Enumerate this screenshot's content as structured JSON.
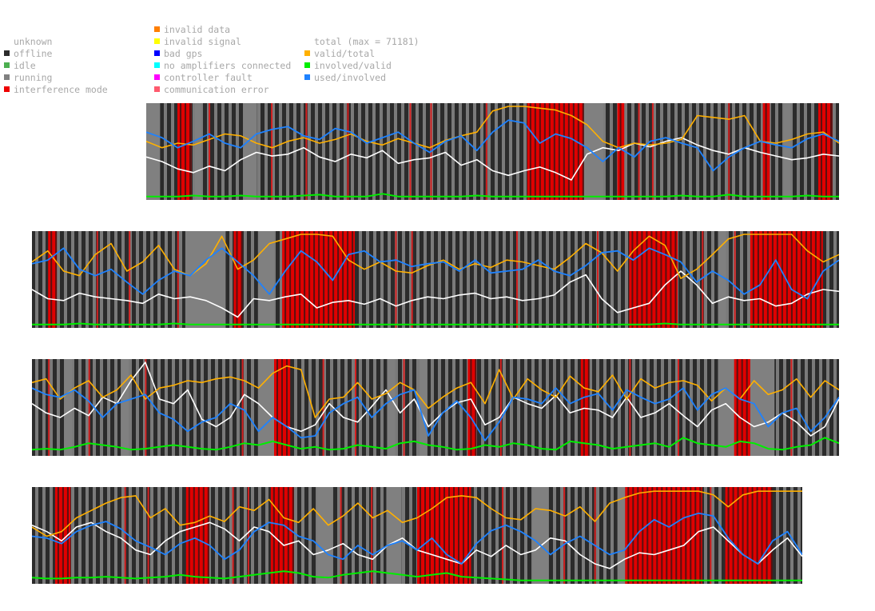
{
  "legend": {
    "state_items": [
      {
        "label": "unknown",
        "color": "#ffffff"
      },
      {
        "label": "offline",
        "color": "#2b2b2b"
      },
      {
        "label": "idle",
        "color": "#4caf50"
      },
      {
        "label": "running",
        "color": "#808080"
      },
      {
        "label": "interference mode",
        "color": "#ee0000"
      }
    ],
    "error_items": [
      {
        "label": "invalid data",
        "color": "#ff7f00"
      },
      {
        "label": "invalid signal",
        "color": "#ffff00"
      },
      {
        "label": "bad gps",
        "color": "#0000ff"
      },
      {
        "label": "no amplifiers connected",
        "color": "#00ffff"
      },
      {
        "label": "controller fault",
        "color": "#ff00ff"
      },
      {
        "label": "communication error",
        "color": "#ff5a6e"
      }
    ],
    "ratio_items": [
      {
        "label": "total (max = 71181)",
        "color": "#ffffff"
      },
      {
        "label": "valid/total",
        "color": "#ffb000"
      },
      {
        "label": "involved/valid",
        "color": "#00ee00"
      },
      {
        "label": "used/involved",
        "color": "#1e82ff"
      }
    ]
  },
  "chart_data": {
    "type": "line",
    "total_max": 71181,
    "background_states": [
      "offline",
      "running",
      "interference mode"
    ],
    "series": [
      {
        "name": "total",
        "color": "#ffffff"
      },
      {
        "name": "valid/total",
        "color": "#ffb000"
      },
      {
        "name": "involved/valid",
        "color": "#00ee00"
      },
      {
        "name": "used/involved",
        "color": "#1e82ff"
      }
    ],
    "strips": [
      {
        "valid_total": [
          0.62,
          0.55,
          0.6,
          0.58,
          0.64,
          0.7,
          0.68,
          0.6,
          0.55,
          0.62,
          0.66,
          0.6,
          0.64,
          0.7,
          0.62,
          0.58,
          0.65,
          0.6,
          0.55,
          0.63,
          0.68,
          0.72,
          0.95,
          1.0,
          1.0,
          0.98,
          0.96,
          0.9,
          0.8,
          0.62,
          0.55,
          0.6,
          0.58,
          0.6,
          0.64,
          0.9,
          0.88,
          0.86,
          0.9,
          0.62,
          0.6,
          0.64,
          0.7,
          0.72,
          0.6
        ],
        "used_involved": [
          0.72,
          0.66,
          0.55,
          0.62,
          0.7,
          0.6,
          0.55,
          0.7,
          0.75,
          0.78,
          0.68,
          0.64,
          0.76,
          0.72,
          0.6,
          0.66,
          0.72,
          0.6,
          0.5,
          0.62,
          0.68,
          0.52,
          0.72,
          0.85,
          0.82,
          0.6,
          0.7,
          0.65,
          0.55,
          0.4,
          0.55,
          0.45,
          0.62,
          0.66,
          0.6,
          0.55,
          0.3,
          0.45,
          0.55,
          0.62,
          0.58,
          0.55,
          0.65,
          0.7,
          0.62
        ],
        "total": [
          0.45,
          0.4,
          0.32,
          0.28,
          0.35,
          0.3,
          0.42,
          0.5,
          0.46,
          0.48,
          0.55,
          0.45,
          0.4,
          0.48,
          0.44,
          0.52,
          0.38,
          0.42,
          0.44,
          0.5,
          0.36,
          0.42,
          0.3,
          0.25,
          0.3,
          0.34,
          0.28,
          0.2,
          0.48,
          0.55,
          0.52,
          0.6,
          0.56,
          0.62,
          0.66,
          0.58,
          0.52,
          0.48,
          0.55,
          0.5,
          0.46,
          0.42,
          0.44,
          0.48,
          0.46
        ],
        "involved_valid": [
          0.02,
          0.02,
          0.02,
          0.03,
          0.02,
          0.02,
          0.03,
          0.02,
          0.02,
          0.02,
          0.03,
          0.04,
          0.02,
          0.02,
          0.02,
          0.05,
          0.02,
          0.02,
          0.02,
          0.02,
          0.02,
          0.03,
          0.02,
          0.02,
          0.02,
          0.02,
          0.02,
          0.02,
          0.02,
          0.02,
          0.02,
          0.02,
          0.02,
          0.02,
          0.03,
          0.02,
          0.02,
          0.04,
          0.02,
          0.02,
          0.02,
          0.02,
          0.03,
          0.02,
          0.02
        ]
      },
      {
        "valid_total": [
          0.7,
          0.82,
          0.6,
          0.55,
          0.78,
          0.9,
          0.6,
          0.7,
          0.88,
          0.62,
          0.55,
          0.68,
          0.98,
          0.62,
          0.72,
          0.9,
          0.95,
          1.0,
          1.0,
          0.98,
          0.72,
          0.62,
          0.7,
          0.6,
          0.58,
          0.66,
          0.72,
          0.62,
          0.68,
          0.64,
          0.72,
          0.7,
          0.66,
          0.62,
          0.75,
          0.9,
          0.8,
          0.6,
          0.82,
          0.98,
          0.88,
          0.52,
          0.62,
          0.78,
          0.95,
          1.0,
          1.0,
          1.0,
          1.0,
          0.82,
          0.7,
          0.78
        ],
        "used_involved": [
          0.68,
          0.72,
          0.85,
          0.62,
          0.55,
          0.62,
          0.48,
          0.35,
          0.5,
          0.6,
          0.55,
          0.72,
          0.85,
          0.7,
          0.55,
          0.35,
          0.6,
          0.82,
          0.7,
          0.5,
          0.78,
          0.82,
          0.7,
          0.72,
          0.65,
          0.68,
          0.7,
          0.6,
          0.72,
          0.58,
          0.6,
          0.62,
          0.72,
          0.6,
          0.55,
          0.66,
          0.8,
          0.82,
          0.72,
          0.85,
          0.78,
          0.7,
          0.48,
          0.6,
          0.5,
          0.35,
          0.45,
          0.72,
          0.4,
          0.3,
          0.6,
          0.72
        ],
        "total": [
          0.4,
          0.3,
          0.28,
          0.36,
          0.32,
          0.3,
          0.28,
          0.25,
          0.35,
          0.3,
          0.32,
          0.28,
          0.2,
          0.1,
          0.3,
          0.28,
          0.32,
          0.35,
          0.2,
          0.26,
          0.28,
          0.24,
          0.3,
          0.22,
          0.28,
          0.32,
          0.3,
          0.34,
          0.36,
          0.3,
          0.32,
          0.28,
          0.3,
          0.34,
          0.48,
          0.56,
          0.3,
          0.15,
          0.2,
          0.25,
          0.45,
          0.6,
          0.45,
          0.25,
          0.32,
          0.28,
          0.3,
          0.22,
          0.25,
          0.35,
          0.4,
          0.38
        ],
        "involved_valid": [
          0.02,
          0.02,
          0.02,
          0.03,
          0.02,
          0.02,
          0.02,
          0.02,
          0.02,
          0.03,
          0.02,
          0.02,
          0.02,
          0.02,
          0.02,
          0.02,
          0.02,
          0.02,
          0.02,
          0.02,
          0.02,
          0.02,
          0.02,
          0.02,
          0.02,
          0.02,
          0.02,
          0.02,
          0.02,
          0.02,
          0.02,
          0.02,
          0.02,
          0.02,
          0.02,
          0.02,
          0.02,
          0.02,
          0.02,
          0.02,
          0.03,
          0.02,
          0.02,
          0.02,
          0.02,
          0.02,
          0.02,
          0.02,
          0.02,
          0.02,
          0.02,
          0.02
        ]
      },
      {
        "valid_total": [
          0.78,
          0.82,
          0.6,
          0.72,
          0.8,
          0.62,
          0.7,
          0.86,
          0.6,
          0.72,
          0.75,
          0.8,
          0.78,
          0.82,
          0.84,
          0.8,
          0.72,
          0.88,
          0.96,
          0.92,
          0.4,
          0.6,
          0.62,
          0.78,
          0.6,
          0.66,
          0.78,
          0.7,
          0.5,
          0.62,
          0.72,
          0.78,
          0.55,
          0.92,
          0.6,
          0.82,
          0.7,
          0.62,
          0.85,
          0.72,
          0.68,
          0.86,
          0.6,
          0.82,
          0.72,
          0.78,
          0.8,
          0.75,
          0.58,
          0.72,
          0.6,
          0.8,
          0.65,
          0.7,
          0.82,
          0.62,
          0.8,
          0.7
        ],
        "used_involved": [
          0.72,
          0.65,
          0.62,
          0.7,
          0.58,
          0.4,
          0.55,
          0.6,
          0.65,
          0.45,
          0.38,
          0.25,
          0.35,
          0.4,
          0.55,
          0.48,
          0.25,
          0.4,
          0.3,
          0.18,
          0.2,
          0.45,
          0.55,
          0.62,
          0.4,
          0.55,
          0.65,
          0.7,
          0.2,
          0.45,
          0.58,
          0.4,
          0.15,
          0.35,
          0.62,
          0.6,
          0.55,
          0.72,
          0.55,
          0.62,
          0.66,
          0.48,
          0.7,
          0.62,
          0.55,
          0.6,
          0.72,
          0.48,
          0.65,
          0.72,
          0.6,
          0.55,
          0.3,
          0.45,
          0.5,
          0.25,
          0.4,
          0.62
        ],
        "total": [
          0.55,
          0.45,
          0.4,
          0.5,
          0.42,
          0.62,
          0.55,
          0.8,
          1.0,
          0.6,
          0.55,
          0.7,
          0.38,
          0.3,
          0.4,
          0.65,
          0.55,
          0.4,
          0.3,
          0.25,
          0.32,
          0.55,
          0.4,
          0.35,
          0.52,
          0.7,
          0.45,
          0.6,
          0.3,
          0.45,
          0.56,
          0.6,
          0.32,
          0.4,
          0.62,
          0.55,
          0.5,
          0.64,
          0.45,
          0.5,
          0.48,
          0.4,
          0.62,
          0.4,
          0.45,
          0.55,
          0.42,
          0.3,
          0.48,
          0.55,
          0.4,
          0.3,
          0.35,
          0.45,
          0.35,
          0.2,
          0.3,
          0.6
        ],
        "involved_valid": [
          0.05,
          0.06,
          0.05,
          0.08,
          0.12,
          0.1,
          0.08,
          0.05,
          0.06,
          0.08,
          0.1,
          0.08,
          0.06,
          0.05,
          0.08,
          0.12,
          0.1,
          0.14,
          0.1,
          0.06,
          0.08,
          0.05,
          0.06,
          0.1,
          0.08,
          0.06,
          0.12,
          0.14,
          0.1,
          0.08,
          0.05,
          0.06,
          0.1,
          0.08,
          0.12,
          0.1,
          0.06,
          0.05,
          0.14,
          0.12,
          0.1,
          0.06,
          0.08,
          0.1,
          0.12,
          0.08,
          0.18,
          0.12,
          0.1,
          0.08,
          0.14,
          0.12,
          0.06,
          0.05,
          0.08,
          0.1,
          0.18,
          0.12
        ]
      },
      {
        "valid_total": [
          0.6,
          0.5,
          0.55,
          0.7,
          0.78,
          0.86,
          0.92,
          0.94,
          0.7,
          0.8,
          0.62,
          0.65,
          0.72,
          0.66,
          0.82,
          0.78,
          0.9,
          0.7,
          0.65,
          0.8,
          0.62,
          0.72,
          0.86,
          0.7,
          0.78,
          0.65,
          0.7,
          0.8,
          0.92,
          0.94,
          0.92,
          0.8,
          0.7,
          0.68,
          0.8,
          0.78,
          0.72,
          0.82,
          0.66,
          0.86,
          0.92,
          0.97,
          0.99,
          0.99,
          0.99,
          0.99,
          0.95,
          0.82,
          0.95,
          0.99,
          0.99,
          0.99,
          0.99
        ],
        "used_involved": [
          0.5,
          0.48,
          0.42,
          0.55,
          0.62,
          0.66,
          0.58,
          0.45,
          0.38,
          0.3,
          0.42,
          0.48,
          0.4,
          0.25,
          0.35,
          0.55,
          0.65,
          0.62,
          0.5,
          0.45,
          0.3,
          0.25,
          0.4,
          0.3,
          0.4,
          0.45,
          0.35,
          0.48,
          0.3,
          0.2,
          0.42,
          0.56,
          0.62,
          0.55,
          0.45,
          0.3,
          0.42,
          0.5,
          0.4,
          0.3,
          0.35,
          0.55,
          0.68,
          0.6,
          0.7,
          0.75,
          0.72,
          0.48,
          0.3,
          0.2,
          0.45,
          0.55,
          0.3
        ],
        "total": [
          0.62,
          0.55,
          0.45,
          0.6,
          0.65,
          0.55,
          0.48,
          0.35,
          0.3,
          0.45,
          0.55,
          0.6,
          0.65,
          0.58,
          0.45,
          0.6,
          0.55,
          0.4,
          0.45,
          0.3,
          0.35,
          0.42,
          0.3,
          0.25,
          0.4,
          0.48,
          0.35,
          0.3,
          0.25,
          0.2,
          0.35,
          0.28,
          0.4,
          0.3,
          0.35,
          0.48,
          0.45,
          0.3,
          0.2,
          0.15,
          0.25,
          0.32,
          0.3,
          0.35,
          0.4,
          0.55,
          0.6,
          0.45,
          0.3,
          0.2,
          0.35,
          0.48,
          0.28
        ],
        "involved_valid": [
          0.05,
          0.04,
          0.04,
          0.05,
          0.05,
          0.06,
          0.05,
          0.04,
          0.05,
          0.06,
          0.08,
          0.06,
          0.05,
          0.04,
          0.06,
          0.08,
          0.1,
          0.12,
          0.1,
          0.06,
          0.05,
          0.08,
          0.1,
          0.12,
          0.1,
          0.08,
          0.06,
          0.08,
          0.1,
          0.06,
          0.05,
          0.04,
          0.03,
          0.02,
          0.02,
          0.02,
          0.02,
          0.02,
          0.02,
          0.02,
          0.02,
          0.02,
          0.02,
          0.02,
          0.02,
          0.02,
          0.02,
          0.02,
          0.02,
          0.02,
          0.02,
          0.02,
          0.02
        ]
      }
    ]
  }
}
